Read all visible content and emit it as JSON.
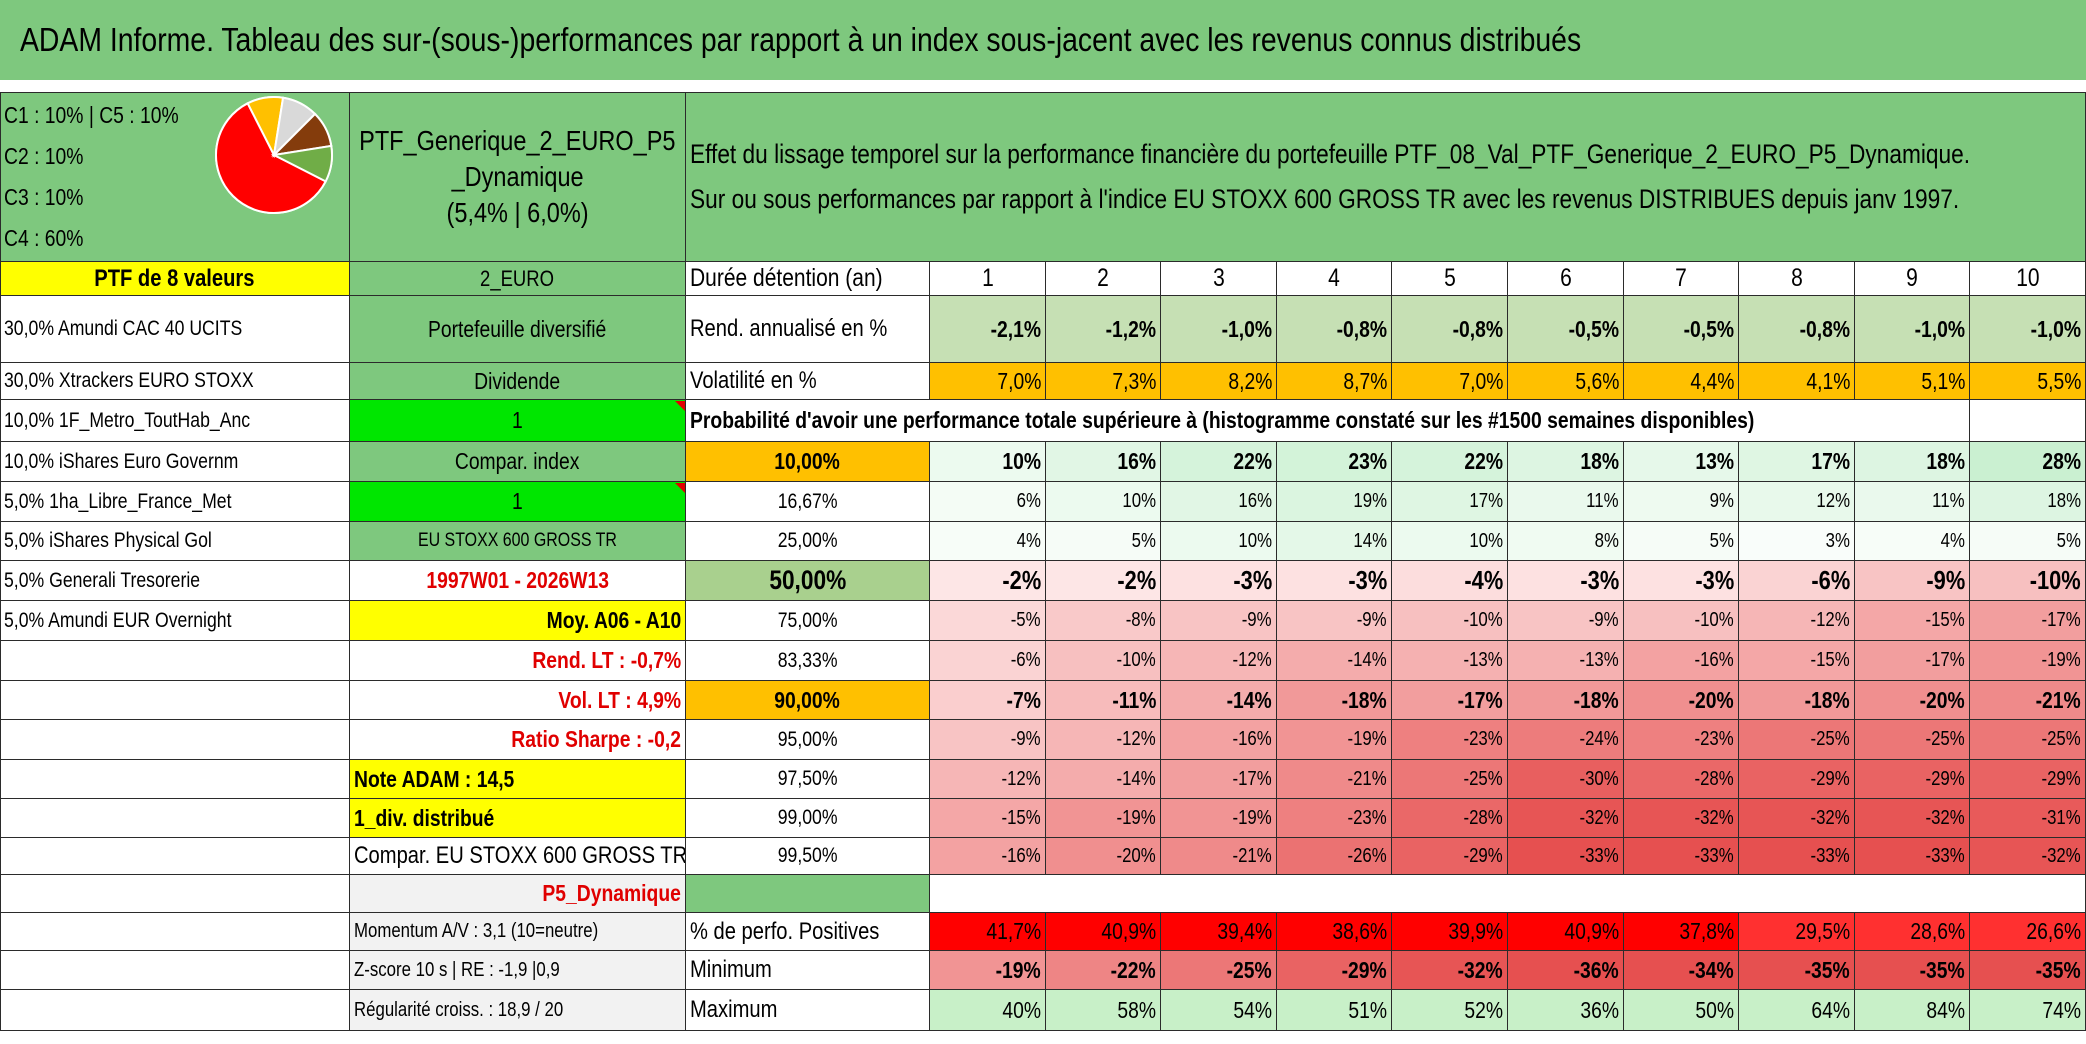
{
  "title": "ADAM Informe. Tableau des sur-(sous-)performances par rapport à un index sous-jacent avec les revenus connus distribués",
  "allocation": {
    "l1": "C1 : 10% | C5 : 10%",
    "l2": "C2 : 10%",
    "l3": "C3 : 10%",
    "l4": "C4 : 60%"
  },
  "pie_slices": [
    {
      "name": "C4",
      "value": 60,
      "color": "#ff0000"
    },
    {
      "name": "C1",
      "value": 10,
      "color": "#ffc000"
    },
    {
      "name": "C2",
      "value": 10,
      "color": "#d9d9d9"
    },
    {
      "name": "C3",
      "value": 10,
      "color": "#843c0c"
    },
    {
      "name": "C5",
      "value": 10,
      "color": "#70ad47"
    }
  ],
  "portfolio": {
    "name_l1": "PTF_Generique_2_EURO_P5",
    "name_l2": "_Dynamique",
    "stats": "(5,4% | 6,0%)"
  },
  "description": {
    "l1": "Effet du lissage temporel sur la performance financière du portefeuille PTF_08_Val_PTF_Generique_2_EURO_P5_Dynamique.",
    "l2": "Sur ou sous performances par rapport à l'indice EU STOXX 600 GROSS TR avec les revenus DISTRIBUES depuis janv 1997."
  },
  "holdings_header": "PTF de 8 valeurs",
  "holdings": [
    "30,0% Amundi CAC 40 UCITS",
    "30,0% Xtrackers EURO STOXX",
    "10,0% 1F_Metro_ToutHab_Anc",
    "10,0% iShares Euro Governm",
    "5,0% 1ha_Libre_France_Met",
    "5,0% iShares Physical Gol",
    "5,0% Generali Tresorerie",
    "5,0% Amundi EUR Overnight"
  ],
  "info": {
    "currency": "2_EURO",
    "type": "Portefeuille diversifié",
    "dividend_label": "Dividende",
    "dividend_value": "1",
    "compar_index_label": "Compar. index",
    "compar_index_value": "1",
    "index_name": "EU STOXX 600 GROSS TR",
    "period": "1997W01 - 2026W13",
    "moy": "Moy. A06 - A10",
    "rend_lt": "Rend. LT : -0,7%",
    "vol_lt": "Vol. LT : 4,9%",
    "sharpe": "Ratio Sharpe : -0,2",
    "note": "Note ADAM : 14,5",
    "div": "1_div. distribué",
    "compar": "Compar. EU STOXX 600 GROSS TR",
    "profile": "P5_Dynamique",
    "momentum": "Momentum A/V : 3,1 (10=neutre)",
    "zscore": "Z-score 10 s | RE : -1,9 |0,9",
    "regularite": "Régularité croiss. : 18,9 / 20"
  },
  "table": {
    "duration_label": "Durée détention (an)",
    "years": [
      "1",
      "2",
      "3",
      "4",
      "5",
      "6",
      "7",
      "8",
      "9",
      "10"
    ],
    "rend_label": "Rend. annualisé en %",
    "rend": [
      "-2,1%",
      "-1,2%",
      "-1,0%",
      "-0,8%",
      "-0,8%",
      "-0,5%",
      "-0,5%",
      "-0,8%",
      "-1,0%",
      "-1,0%"
    ],
    "vol_label": "Volatilité en %",
    "vol": [
      "7,0%",
      "7,3%",
      "8,2%",
      "8,7%",
      "7,0%",
      "5,6%",
      "4,4%",
      "4,1%",
      "5,1%",
      "5,5%"
    ],
    "prob_label": "Probabilité d'avoir une performance totale supérieure à (histogramme constaté sur les #1500 semaines disponibles)",
    "quantiles": [
      {
        "label": "10,00%",
        "values": [
          "10%",
          "16%",
          "22%",
          "23%",
          "22%",
          "18%",
          "13%",
          "17%",
          "18%",
          "28%"
        ]
      },
      {
        "label": "16,67%",
        "values": [
          "6%",
          "10%",
          "16%",
          "19%",
          "17%",
          "11%",
          "9%",
          "12%",
          "11%",
          "18%"
        ]
      },
      {
        "label": "25,00%",
        "values": [
          "4%",
          "5%",
          "10%",
          "14%",
          "10%",
          "8%",
          "5%",
          "3%",
          "4%",
          "5%"
        ]
      },
      {
        "label": "50,00%",
        "values": [
          "-2%",
          "-2%",
          "-3%",
          "-3%",
          "-4%",
          "-3%",
          "-3%",
          "-6%",
          "-9%",
          "-10%"
        ]
      },
      {
        "label": "75,00%",
        "values": [
          "-5%",
          "-8%",
          "-9%",
          "-9%",
          "-10%",
          "-9%",
          "-10%",
          "-12%",
          "-15%",
          "-17%"
        ]
      },
      {
        "label": "83,33%",
        "values": [
          "-6%",
          "-10%",
          "-12%",
          "-14%",
          "-13%",
          "-13%",
          "-16%",
          "-15%",
          "-17%",
          "-19%"
        ]
      },
      {
        "label": "90,00%",
        "values": [
          "-7%",
          "-11%",
          "-14%",
          "-18%",
          "-17%",
          "-18%",
          "-20%",
          "-18%",
          "-20%",
          "-21%"
        ]
      },
      {
        "label": "95,00%",
        "values": [
          "-9%",
          "-12%",
          "-16%",
          "-19%",
          "-23%",
          "-24%",
          "-23%",
          "-25%",
          "-25%",
          "-25%"
        ]
      },
      {
        "label": "97,50%",
        "values": [
          "-12%",
          "-14%",
          "-17%",
          "-21%",
          "-25%",
          "-30%",
          "-28%",
          "-29%",
          "-29%",
          "-29%"
        ]
      },
      {
        "label": "99,00%",
        "values": [
          "-15%",
          "-19%",
          "-19%",
          "-23%",
          "-28%",
          "-32%",
          "-32%",
          "-32%",
          "-32%",
          "-31%"
        ]
      },
      {
        "label": "99,50%",
        "values": [
          "-16%",
          "-20%",
          "-21%",
          "-26%",
          "-29%",
          "-33%",
          "-33%",
          "-33%",
          "-33%",
          "-32%"
        ]
      }
    ],
    "pos_label": "% de perfo. Positives",
    "pos": [
      "41,7%",
      "40,9%",
      "39,4%",
      "38,6%",
      "39,9%",
      "40,9%",
      "37,8%",
      "29,5%",
      "28,6%",
      "26,6%"
    ],
    "min_label": "Minimum",
    "min": [
      "-19%",
      "-22%",
      "-25%",
      "-29%",
      "-32%",
      "-36%",
      "-34%",
      "-35%",
      "-35%",
      "-35%"
    ],
    "max_label": "Maximum",
    "max": [
      "40%",
      "58%",
      "54%",
      "51%",
      "52%",
      "36%",
      "50%",
      "64%",
      "84%",
      "74%"
    ]
  },
  "colors": {
    "green": "#7ec87e",
    "yellow": "#ffff00",
    "orange": "#ffc000",
    "bright_green": "#00e600",
    "red": "#ff0000"
  }
}
